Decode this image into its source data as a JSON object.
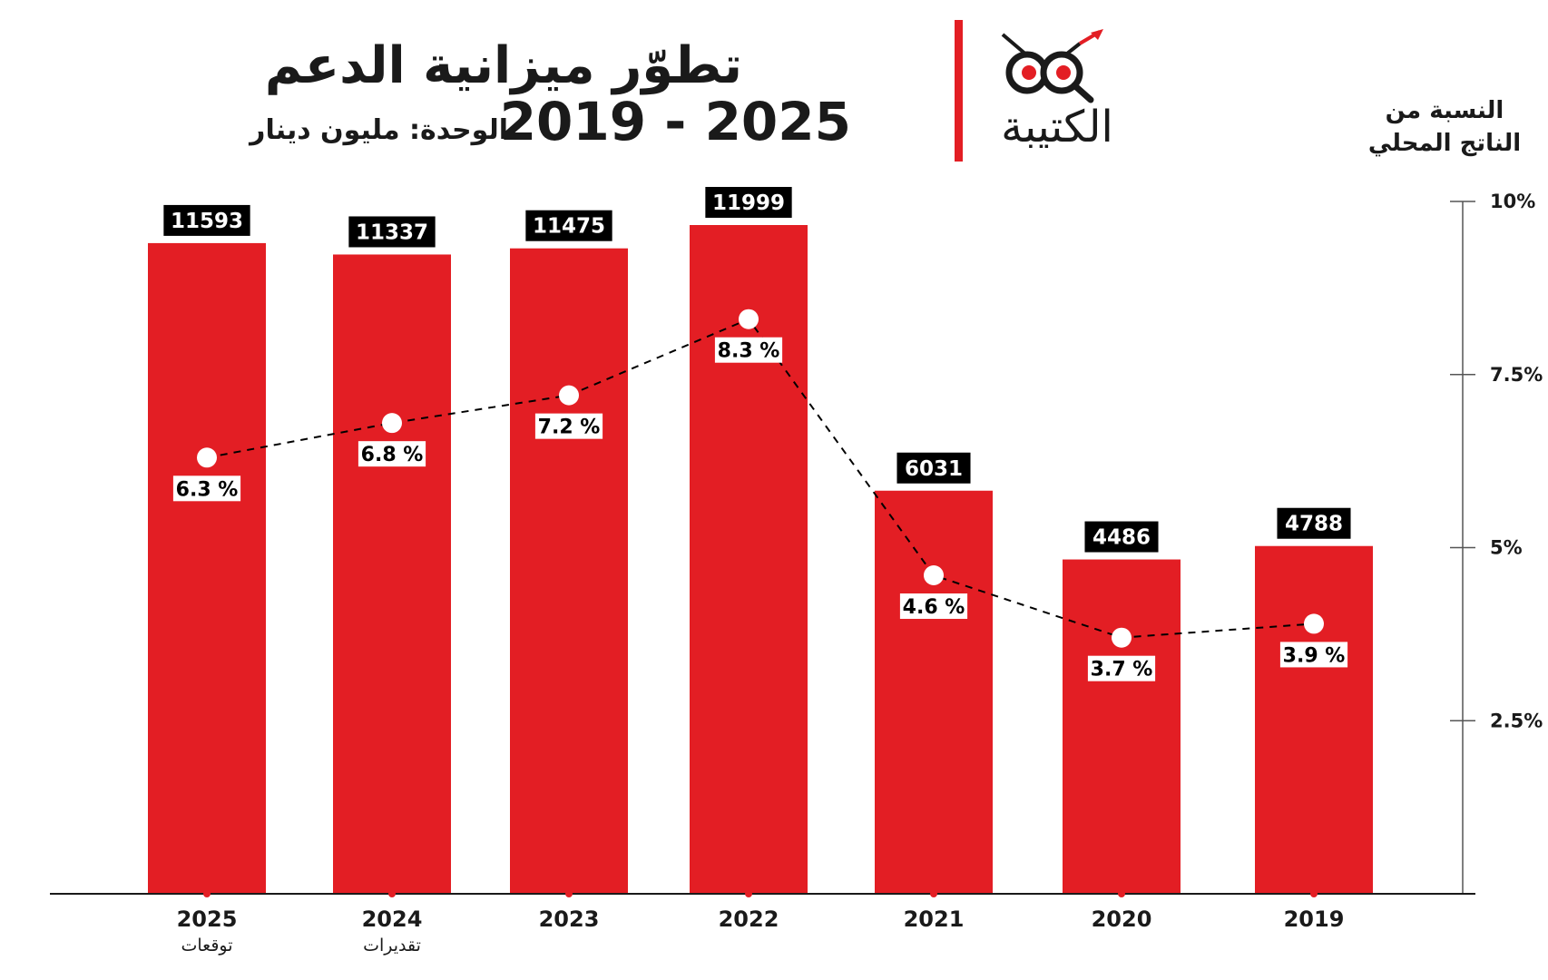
{
  "header": {
    "title": "تطوّر ميزانية الدعم",
    "years": "2019 - 2025",
    "unit": "الوحدة: مليون دينار",
    "logo_text": "الكتيبة"
  },
  "colors": {
    "bar": "#e31e24",
    "label_bg": "#000000",
    "accent": "#e31e24",
    "line": "#000000"
  },
  "chart_data": {
    "type": "bar",
    "title": "تطوّر ميزانية الدعم",
    "subtitle": "2019 - 2025",
    "unit": "الوحدة: مليون دينار",
    "categories": [
      "2025",
      "2024",
      "2023",
      "2022",
      "2021",
      "2020",
      "2019"
    ],
    "category_notes": [
      "توقعات",
      "تقديرات",
      "",
      "",
      "",
      "",
      ""
    ],
    "series": [
      {
        "values": [
          11593,
          11337,
          11475,
          11999,
          6031,
          4486,
          4788
        ]
      }
    ],
    "line_series": {
      "name": "النسبة من الناتج المحلي",
      "values": [
        6.3,
        6.8,
        7.2,
        8.3,
        4.6,
        3.7,
        3.9
      ],
      "labels": [
        "6.3 %",
        "6.8 %",
        "7.2 %",
        "8.3 %",
        "4.6 %",
        "3.7 %",
        "3.9 %"
      ],
      "style": "dashed"
    },
    "secondary_axis": {
      "label": "النسبة من الناتج المحلي",
      "position": "right",
      "range": [
        0,
        10
      ],
      "ticks": [
        2.5,
        5,
        7.5,
        10
      ],
      "tick_labels": [
        "2.5%",
        "5%",
        "7.5%",
        "10%"
      ]
    },
    "grid": false,
    "legend": "none"
  }
}
